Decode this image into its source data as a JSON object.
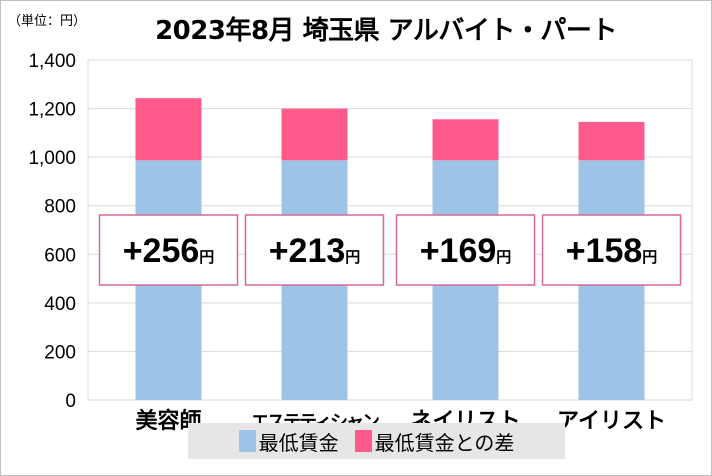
{
  "chart_data": {
    "type": "bar",
    "stacked": true,
    "title": "2023年8月 埼玉県 アルバイト・パート",
    "unit_label": "（単位：円）",
    "categories": [
      "美容師",
      "エステティシャン",
      "ネイリスト",
      "アイリスト"
    ],
    "series": [
      {
        "name": "最低賃金",
        "values": [
          987,
          987,
          987,
          987
        ],
        "color": "#9dc3e6"
      },
      {
        "name": "最低賃金との差",
        "values": [
          256,
          213,
          169,
          158
        ],
        "color": "#ff5a8c"
      }
    ],
    "data_labels": [
      "+256円",
      "+213円",
      "+169円",
      "+158円"
    ],
    "ylim": [
      0,
      1400
    ],
    "yticks": [
      0,
      200,
      400,
      600,
      800,
      1000,
      1200,
      1400
    ],
    "ytick_labels": [
      "0",
      "200",
      "400",
      "600",
      "800",
      "1,000",
      "1,200",
      "1,400"
    ],
    "grid": true,
    "legend_position": "bottom"
  }
}
